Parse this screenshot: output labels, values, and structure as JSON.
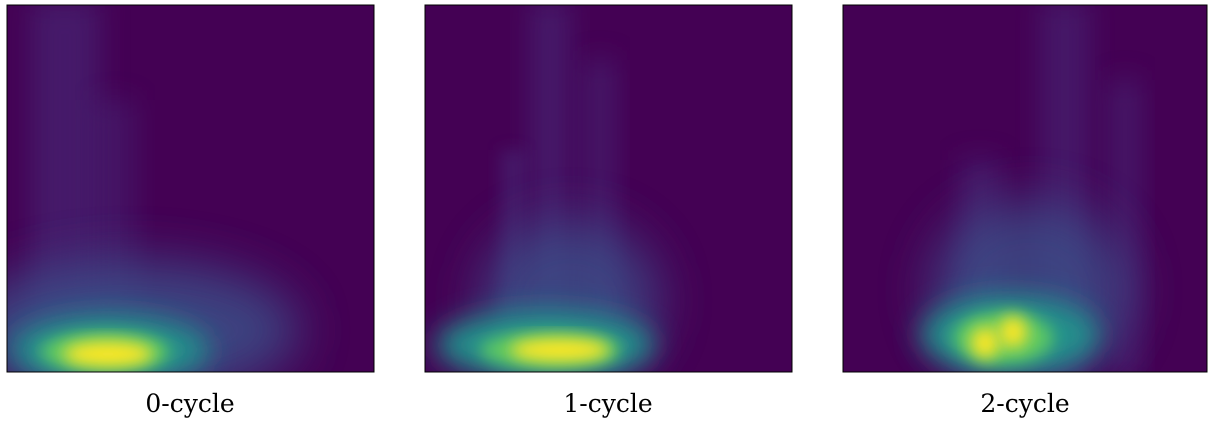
{
  "panels": [
    {
      "label": "0-cycle"
    },
    {
      "label": "1-cycle"
    },
    {
      "label": "2-cycle"
    }
  ]
}
